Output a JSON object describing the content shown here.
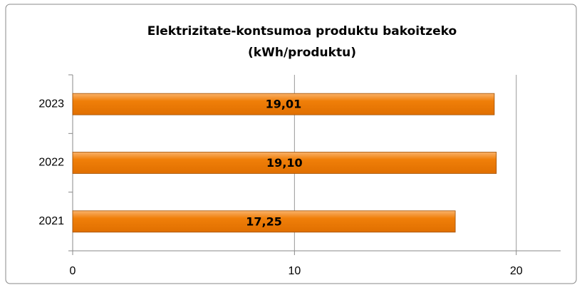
{
  "chart_data": {
    "type": "bar",
    "orientation": "horizontal",
    "title": [
      "Elektrizitate-kontsumoa produktu bakoitzeko",
      "(kWh/produktu)"
    ],
    "categories": [
      "2023",
      "2022",
      "2021"
    ],
    "values": [
      19.01,
      19.1,
      17.25
    ],
    "value_labels": [
      "19,01",
      "19,10",
      "17,25"
    ],
    "color": "#f07f09",
    "xlim": [
      0,
      22
    ],
    "xticks": [
      0,
      10,
      20
    ],
    "grid": true
  }
}
